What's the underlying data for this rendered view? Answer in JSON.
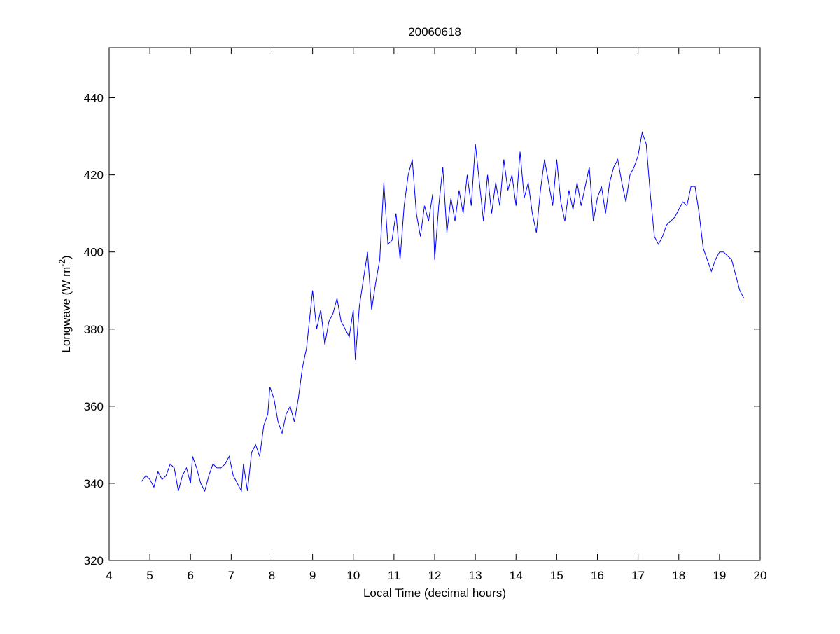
{
  "chart_data": {
    "type": "line",
    "title": "20060618",
    "xlabel": "Local Time (decimal hours)",
    "ylabel": "Longwave (W m",
    "ylabel_sup": "-2",
    "ylabel_end": ")",
    "xlim": [
      4,
      20
    ],
    "xticks": [
      4,
      5,
      6,
      7,
      8,
      9,
      10,
      11,
      12,
      13,
      14,
      15,
      16,
      17,
      18,
      19,
      20
    ],
    "ylim": [
      320,
      453
    ],
    "yticks": [
      320,
      340,
      360,
      380,
      400,
      420,
      440
    ],
    "grid": false,
    "series": [
      {
        "color": "#0000ff",
        "x": [
          4.8,
          4.9,
          5.0,
          5.1,
          5.2,
          5.3,
          5.4,
          5.5,
          5.6,
          5.7,
          5.8,
          5.9,
          6.0,
          6.05,
          6.15,
          6.25,
          6.35,
          6.45,
          6.55,
          6.65,
          6.75,
          6.85,
          6.95,
          7.05,
          7.15,
          7.25,
          7.3,
          7.4,
          7.5,
          7.6,
          7.7,
          7.8,
          7.9,
          7.95,
          8.05,
          8.15,
          8.25,
          8.35,
          8.45,
          8.55,
          8.65,
          8.75,
          8.85,
          8.9,
          9.0,
          9.1,
          9.2,
          9.3,
          9.4,
          9.5,
          9.6,
          9.7,
          9.8,
          9.9,
          10.0,
          10.05,
          10.15,
          10.25,
          10.35,
          10.45,
          10.55,
          10.65,
          10.75,
          10.85,
          10.95,
          11.05,
          11.15,
          11.25,
          11.35,
          11.45,
          11.55,
          11.65,
          11.75,
          11.85,
          11.95,
          12.0,
          12.1,
          12.2,
          12.3,
          12.4,
          12.5,
          12.6,
          12.7,
          12.8,
          12.9,
          13.0,
          13.1,
          13.2,
          13.3,
          13.4,
          13.5,
          13.6,
          13.7,
          13.8,
          13.9,
          14.0,
          14.1,
          14.2,
          14.3,
          14.4,
          14.5,
          14.6,
          14.7,
          14.8,
          14.9,
          15.0,
          15.1,
          15.2,
          15.3,
          15.4,
          15.5,
          15.6,
          15.7,
          15.8,
          15.9,
          16.0,
          16.1,
          16.2,
          16.3,
          16.4,
          16.5,
          16.6,
          16.7,
          16.8,
          16.9,
          17.0,
          17.1,
          17.2,
          17.3,
          17.4,
          17.5,
          17.6,
          17.7,
          17.8,
          17.9,
          18.0,
          18.1,
          18.2,
          18.3,
          18.4,
          18.5,
          18.6,
          18.7,
          18.8,
          18.9,
          19.0,
          19.1,
          19.2,
          19.3,
          19.4,
          19.5,
          19.6
        ],
        "values": [
          340.5,
          342,
          341,
          339,
          343,
          341,
          342,
          345,
          344,
          338,
          342,
          344,
          340,
          347,
          344,
          340,
          338,
          342,
          345,
          344,
          344,
          345,
          347,
          342,
          340,
          338,
          345,
          338,
          348,
          350,
          347,
          355,
          358,
          365,
          362,
          356,
          353,
          358,
          360,
          356,
          362,
          370,
          375,
          380,
          390,
          380,
          385,
          376,
          382,
          384,
          388,
          382,
          380,
          378,
          385,
          372,
          386,
          393,
          400,
          385,
          392,
          398,
          418,
          402,
          403,
          410,
          398,
          412,
          420,
          424,
          410,
          404,
          412,
          408,
          415,
          398,
          412,
          422,
          405,
          414,
          408,
          416,
          410,
          420,
          412,
          428,
          418,
          408,
          420,
          410,
          418,
          412,
          424,
          416,
          420,
          412,
          426,
          414,
          418,
          410,
          405,
          416,
          424,
          418,
          412,
          424,
          413,
          408,
          416,
          411,
          418,
          412,
          417,
          422,
          408,
          414,
          417,
          410,
          418,
          422,
          424,
          418,
          413,
          420,
          422,
          425,
          431,
          428,
          415,
          404,
          402,
          404,
          407,
          408,
          409,
          411,
          413,
          412,
          417,
          417,
          410,
          401,
          398,
          395,
          398,
          400,
          400,
          399,
          398,
          394,
          390,
          388
        ]
      }
    ]
  }
}
